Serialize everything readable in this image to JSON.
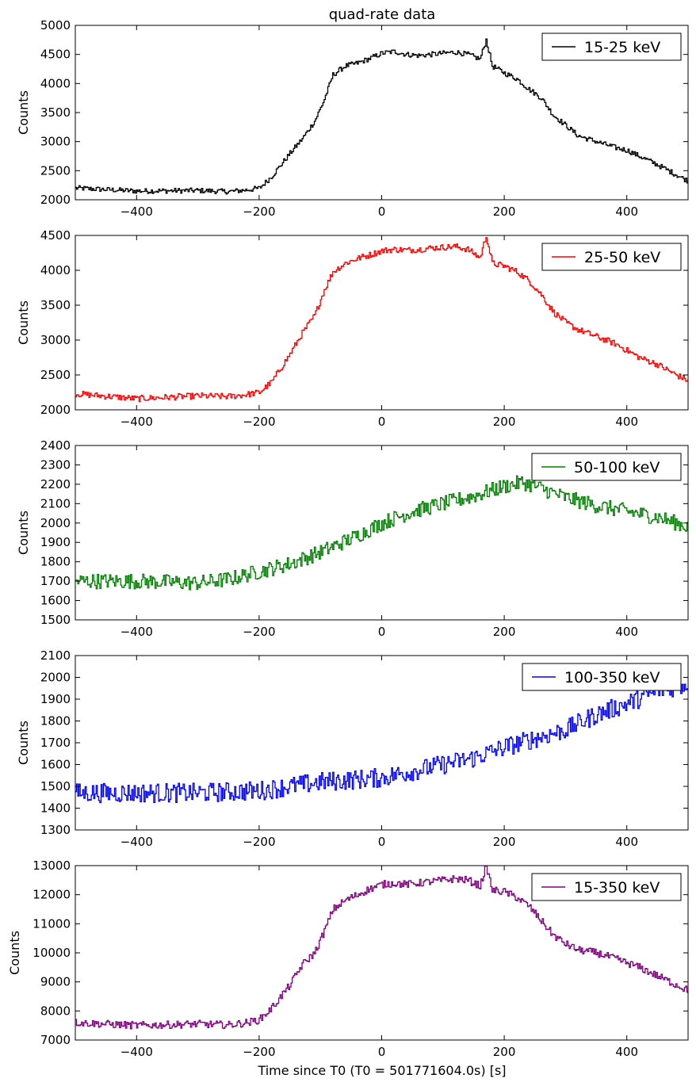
{
  "figure": {
    "title": "quad-rate data",
    "xlabel": "Time since T0 (T0 = 501771604.0s) [s]"
  },
  "chart_data": [
    {
      "type": "line",
      "ylabel": "Counts",
      "xlim": [
        -500,
        500
      ],
      "ylim": [
        2000,
        5000
      ],
      "xticks": [
        -400,
        -200,
        0,
        200,
        400
      ],
      "yticks": [
        2000,
        2500,
        3000,
        3500,
        4000,
        4500,
        5000
      ],
      "legend_position": "top-right",
      "series": [
        {
          "name": "15-25 keV",
          "color": "#000000",
          "x": [
            -500,
            -400,
            -300,
            -250,
            -220,
            -200,
            -180,
            -150,
            -130,
            -110,
            -95,
            -80,
            -60,
            -40,
            -20,
            0,
            20,
            40,
            60,
            80,
            100,
            120,
            140,
            160,
            170,
            180,
            200,
            220,
            240,
            260,
            280,
            300,
            320,
            350,
            380,
            400,
            420,
            450,
            480,
            500
          ],
          "y": [
            2200,
            2150,
            2160,
            2140,
            2170,
            2200,
            2400,
            2800,
            3050,
            3350,
            3700,
            4150,
            4300,
            4350,
            4430,
            4520,
            4550,
            4500,
            4480,
            4500,
            4520,
            4540,
            4500,
            4420,
            4750,
            4300,
            4180,
            4080,
            3900,
            3750,
            3450,
            3280,
            3100,
            3000,
            2900,
            2850,
            2750,
            2600,
            2430,
            2320
          ],
          "noise": 45
        }
      ]
    },
    {
      "type": "line",
      "ylabel": "Counts",
      "xlim": [
        -500,
        500
      ],
      "ylim": [
        2000,
        4500
      ],
      "xticks": [
        -400,
        -200,
        0,
        200,
        400
      ],
      "yticks": [
        2000,
        2500,
        3000,
        3500,
        4000,
        4500
      ],
      "legend_position": "top-right",
      "series": [
        {
          "name": "25-50 keV",
          "color": "#ff0000",
          "x": [
            -500,
            -400,
            -300,
            -250,
            -220,
            -200,
            -180,
            -150,
            -130,
            -110,
            -95,
            -80,
            -60,
            -40,
            -20,
            0,
            20,
            40,
            60,
            80,
            100,
            120,
            140,
            160,
            170,
            180,
            200,
            220,
            240,
            260,
            280,
            300,
            320,
            350,
            380,
            400,
            420,
            450,
            480,
            500
          ],
          "y": [
            2230,
            2160,
            2200,
            2190,
            2220,
            2250,
            2400,
            2800,
            3100,
            3350,
            3700,
            3980,
            4100,
            4170,
            4220,
            4280,
            4300,
            4290,
            4300,
            4320,
            4330,
            4340,
            4300,
            4180,
            4500,
            4100,
            4060,
            3980,
            3850,
            3650,
            3400,
            3250,
            3150,
            3050,
            2950,
            2850,
            2750,
            2650,
            2500,
            2420
          ],
          "noise": 45
        }
      ]
    },
    {
      "type": "line",
      "ylabel": "Counts",
      "xlim": [
        -500,
        500
      ],
      "ylim": [
        1500,
        2400
      ],
      "xticks": [
        -400,
        -200,
        0,
        200,
        400
      ],
      "yticks": [
        1500,
        1600,
        1700,
        1800,
        1900,
        2000,
        2100,
        2200,
        2300,
        2400
      ],
      "legend_position": "top-right",
      "series": [
        {
          "name": "50-100 keV",
          "color": "#008000",
          "x": [
            -500,
            -400,
            -300,
            -250,
            -200,
            -150,
            -100,
            -50,
            0,
            50,
            100,
            150,
            200,
            230,
            250,
            300,
            350,
            400,
            450,
            500
          ],
          "y": [
            1700,
            1700,
            1690,
            1710,
            1750,
            1790,
            1850,
            1920,
            2000,
            2060,
            2100,
            2140,
            2190,
            2210,
            2190,
            2130,
            2090,
            2060,
            2030,
            1980
          ],
          "noise": 40
        }
      ]
    },
    {
      "type": "line",
      "ylabel": "Counts",
      "xlim": [
        -500,
        500
      ],
      "ylim": [
        1300,
        2100
      ],
      "xticks": [
        -400,
        -200,
        0,
        200,
        400
      ],
      "yticks": [
        1300,
        1400,
        1500,
        1600,
        1700,
        1800,
        1900,
        2000,
        2100
      ],
      "legend_position": "top-right",
      "series": [
        {
          "name": "100-350 keV",
          "color": "#0000ff",
          "x": [
            -500,
            -400,
            -300,
            -200,
            -150,
            -100,
            -50,
            0,
            50,
            100,
            150,
            200,
            250,
            300,
            350,
            400,
            450,
            500
          ],
          "y": [
            1470,
            1470,
            1470,
            1480,
            1500,
            1520,
            1530,
            1540,
            1570,
            1600,
            1630,
            1680,
            1720,
            1760,
            1830,
            1880,
            1940,
            1970
          ],
          "noise": 45
        }
      ]
    },
    {
      "type": "line",
      "ylabel": "Counts",
      "xlim": [
        -500,
        500
      ],
      "ylim": [
        7000,
        13000
      ],
      "xticks": [
        -400,
        -200,
        0,
        200,
        400
      ],
      "yticks": [
        7000,
        8000,
        9000,
        10000,
        11000,
        12000,
        13000
      ],
      "legend_position": "top-right",
      "series": [
        {
          "name": "15-350 keV",
          "color": "#800080",
          "x": [
            -500,
            -400,
            -300,
            -250,
            -220,
            -200,
            -180,
            -150,
            -130,
            -110,
            -95,
            -80,
            -60,
            -40,
            -20,
            0,
            20,
            40,
            60,
            80,
            100,
            120,
            140,
            160,
            170,
            180,
            200,
            220,
            240,
            260,
            280,
            300,
            320,
            350,
            380,
            400,
            420,
            450,
            480,
            500
          ],
          "y": [
            7600,
            7500,
            7550,
            7520,
            7600,
            7700,
            8100,
            8900,
            9600,
            10000,
            10700,
            11500,
            11800,
            12000,
            12200,
            12350,
            12400,
            12350,
            12400,
            12450,
            12500,
            12550,
            12500,
            12300,
            13000,
            12150,
            12100,
            11900,
            11600,
            11100,
            10600,
            10300,
            10100,
            10000,
            9800,
            9650,
            9500,
            9200,
            8900,
            8700
          ],
          "noise": 130
        }
      ]
    }
  ]
}
